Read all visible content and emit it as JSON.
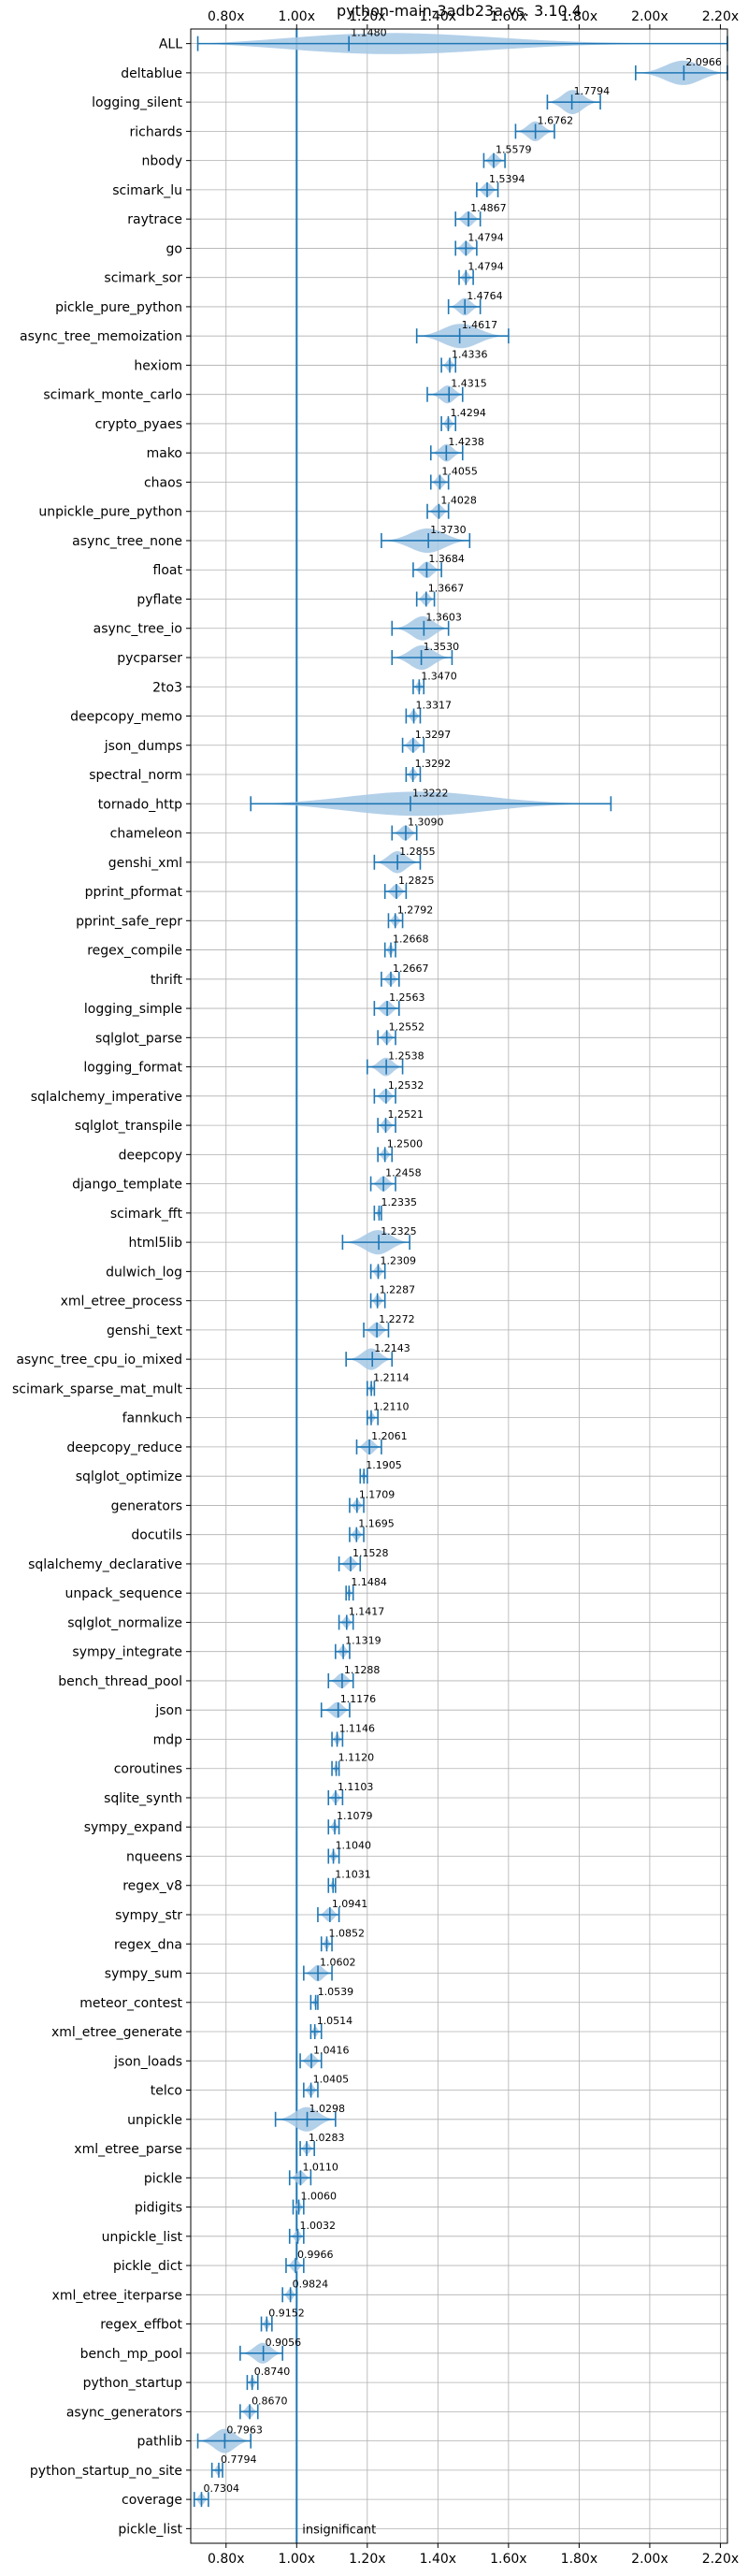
{
  "chart_data": {
    "type": "violin",
    "title": "python-main-3adb23a vs. 3.10.4",
    "xlim": [
      0.7,
      2.22
    ],
    "xticks": [
      0.8,
      1.0,
      1.2,
      1.4,
      1.6,
      1.8,
      2.0,
      2.2
    ],
    "xtick_labels": [
      "0.80x",
      "1.00x",
      "1.20x",
      "1.40x",
      "1.60x",
      "1.80x",
      "2.00x",
      "2.20x"
    ],
    "reference_x": 1.0,
    "grid": true,
    "annotation": "insignificant",
    "colors": {
      "accent": "#1f77b4",
      "violin": "#a6c8e5",
      "grid": "#b0b0b0"
    },
    "benchmarks": [
      {
        "name": "ALL",
        "value": 1.148,
        "label": "1.1480",
        "min": 0.72,
        "max": 2.22
      },
      {
        "name": "deltablue",
        "value": 2.0966,
        "label": "2.0966",
        "min": 1.96,
        "max": 2.22
      },
      {
        "name": "logging_silent",
        "value": 1.7794,
        "label": "1.7794",
        "min": 1.71,
        "max": 1.86
      },
      {
        "name": "richards",
        "value": 1.6762,
        "label": "1.6762",
        "min": 1.62,
        "max": 1.73
      },
      {
        "name": "nbody",
        "value": 1.5579,
        "label": "1.5579",
        "min": 1.53,
        "max": 1.59
      },
      {
        "name": "scimark_lu",
        "value": 1.5394,
        "label": "1.5394",
        "min": 1.51,
        "max": 1.57
      },
      {
        "name": "raytrace",
        "value": 1.4867,
        "label": "1.4867",
        "min": 1.45,
        "max": 1.52
      },
      {
        "name": "go",
        "value": 1.4794,
        "label": "1.4794",
        "min": 1.45,
        "max": 1.51
      },
      {
        "name": "scimark_sor",
        "value": 1.4794,
        "label": "1.4794",
        "min": 1.46,
        "max": 1.5
      },
      {
        "name": "pickle_pure_python",
        "value": 1.4764,
        "label": "1.4764",
        "min": 1.43,
        "max": 1.52
      },
      {
        "name": "async_tree_memoization",
        "value": 1.4617,
        "label": "1.4617",
        "min": 1.34,
        "max": 1.6
      },
      {
        "name": "hexiom",
        "value": 1.4336,
        "label": "1.4336",
        "min": 1.41,
        "max": 1.45
      },
      {
        "name": "scimark_monte_carlo",
        "value": 1.4315,
        "label": "1.4315",
        "min": 1.37,
        "max": 1.47
      },
      {
        "name": "crypto_pyaes",
        "value": 1.4294,
        "label": "1.4294",
        "min": 1.41,
        "max": 1.45
      },
      {
        "name": "mako",
        "value": 1.4238,
        "label": "1.4238",
        "min": 1.38,
        "max": 1.47
      },
      {
        "name": "chaos",
        "value": 1.4055,
        "label": "1.4055",
        "min": 1.38,
        "max": 1.43
      },
      {
        "name": "unpickle_pure_python",
        "value": 1.4028,
        "label": "1.4028",
        "min": 1.37,
        "max": 1.43
      },
      {
        "name": "async_tree_none",
        "value": 1.373,
        "label": "1.3730",
        "min": 1.24,
        "max": 1.49
      },
      {
        "name": "float",
        "value": 1.3684,
        "label": "1.3684",
        "min": 1.33,
        "max": 1.41
      },
      {
        "name": "pyflate",
        "value": 1.3667,
        "label": "1.3667",
        "min": 1.34,
        "max": 1.39
      },
      {
        "name": "async_tree_io",
        "value": 1.3603,
        "label": "1.3603",
        "min": 1.27,
        "max": 1.43
      },
      {
        "name": "pycparser",
        "value": 1.353,
        "label": "1.3530",
        "min": 1.27,
        "max": 1.44
      },
      {
        "name": "2to3",
        "value": 1.347,
        "label": "1.3470",
        "min": 1.33,
        "max": 1.36
      },
      {
        "name": "deepcopy_memo",
        "value": 1.3317,
        "label": "1.3317",
        "min": 1.31,
        "max": 1.35
      },
      {
        "name": "json_dumps",
        "value": 1.3297,
        "label": "1.3297",
        "min": 1.3,
        "max": 1.36
      },
      {
        "name": "spectral_norm",
        "value": 1.3292,
        "label": "1.3292",
        "min": 1.31,
        "max": 1.35
      },
      {
        "name": "tornado_http",
        "value": 1.3222,
        "label": "1.3222",
        "min": 0.87,
        "max": 1.89
      },
      {
        "name": "chameleon",
        "value": 1.309,
        "label": "1.3090",
        "min": 1.27,
        "max": 1.34
      },
      {
        "name": "genshi_xml",
        "value": 1.2855,
        "label": "1.2855",
        "min": 1.22,
        "max": 1.35
      },
      {
        "name": "pprint_pformat",
        "value": 1.2825,
        "label": "1.2825",
        "min": 1.25,
        "max": 1.31
      },
      {
        "name": "pprint_safe_repr",
        "value": 1.2792,
        "label": "1.2792",
        "min": 1.26,
        "max": 1.3
      },
      {
        "name": "regex_compile",
        "value": 1.2668,
        "label": "1.2668",
        "min": 1.25,
        "max": 1.28
      },
      {
        "name": "thrift",
        "value": 1.2667,
        "label": "1.2667",
        "min": 1.24,
        "max": 1.29
      },
      {
        "name": "logging_simple",
        "value": 1.2563,
        "label": "1.2563",
        "min": 1.22,
        "max": 1.29
      },
      {
        "name": "sqlglot_parse",
        "value": 1.2552,
        "label": "1.2552",
        "min": 1.23,
        "max": 1.28
      },
      {
        "name": "logging_format",
        "value": 1.2538,
        "label": "1.2538",
        "min": 1.2,
        "max": 1.3
      },
      {
        "name": "sqlalchemy_imperative",
        "value": 1.2532,
        "label": "1.2532",
        "min": 1.22,
        "max": 1.28
      },
      {
        "name": "sqlglot_transpile",
        "value": 1.2521,
        "label": "1.2521",
        "min": 1.23,
        "max": 1.28
      },
      {
        "name": "deepcopy",
        "value": 1.25,
        "label": "1.2500",
        "min": 1.23,
        "max": 1.27
      },
      {
        "name": "django_template",
        "value": 1.2458,
        "label": "1.2458",
        "min": 1.21,
        "max": 1.28
      },
      {
        "name": "scimark_fft",
        "value": 1.2335,
        "label": "1.2335",
        "min": 1.22,
        "max": 1.24
      },
      {
        "name": "html5lib",
        "value": 1.2325,
        "label": "1.2325",
        "min": 1.13,
        "max": 1.32
      },
      {
        "name": "dulwich_log",
        "value": 1.2309,
        "label": "1.2309",
        "min": 1.21,
        "max": 1.25
      },
      {
        "name": "xml_etree_process",
        "value": 1.2287,
        "label": "1.2287",
        "min": 1.21,
        "max": 1.25
      },
      {
        "name": "genshi_text",
        "value": 1.2272,
        "label": "1.2272",
        "min": 1.19,
        "max": 1.26
      },
      {
        "name": "async_tree_cpu_io_mixed",
        "value": 1.2143,
        "label": "1.2143",
        "min": 1.14,
        "max": 1.27
      },
      {
        "name": "scimark_sparse_mat_mult",
        "value": 1.2114,
        "label": "1.2114",
        "min": 1.2,
        "max": 1.22
      },
      {
        "name": "fannkuch",
        "value": 1.211,
        "label": "1.2110",
        "min": 1.2,
        "max": 1.23
      },
      {
        "name": "deepcopy_reduce",
        "value": 1.2061,
        "label": "1.2061",
        "min": 1.17,
        "max": 1.24
      },
      {
        "name": "sqlglot_optimize",
        "value": 1.1905,
        "label": "1.1905",
        "min": 1.18,
        "max": 1.2
      },
      {
        "name": "generators",
        "value": 1.1709,
        "label": "1.1709",
        "min": 1.15,
        "max": 1.19
      },
      {
        "name": "docutils",
        "value": 1.1695,
        "label": "1.1695",
        "min": 1.15,
        "max": 1.19
      },
      {
        "name": "sqlalchemy_declarative",
        "value": 1.1528,
        "label": "1.1528",
        "min": 1.12,
        "max": 1.18
      },
      {
        "name": "unpack_sequence",
        "value": 1.1484,
        "label": "1.1484",
        "min": 1.14,
        "max": 1.16
      },
      {
        "name": "sqlglot_normalize",
        "value": 1.1417,
        "label": "1.1417",
        "min": 1.12,
        "max": 1.16
      },
      {
        "name": "sympy_integrate",
        "value": 1.1319,
        "label": "1.1319",
        "min": 1.11,
        "max": 1.15
      },
      {
        "name": "bench_thread_pool",
        "value": 1.1288,
        "label": "1.1288",
        "min": 1.09,
        "max": 1.16
      },
      {
        "name": "json",
        "value": 1.1176,
        "label": "1.1176",
        "min": 1.07,
        "max": 1.15
      },
      {
        "name": "mdp",
        "value": 1.1146,
        "label": "1.1146",
        "min": 1.1,
        "max": 1.13
      },
      {
        "name": "coroutines",
        "value": 1.112,
        "label": "1.1120",
        "min": 1.1,
        "max": 1.12
      },
      {
        "name": "sqlite_synth",
        "value": 1.1103,
        "label": "1.1103",
        "min": 1.09,
        "max": 1.13
      },
      {
        "name": "sympy_expand",
        "value": 1.1079,
        "label": "1.1079",
        "min": 1.09,
        "max": 1.12
      },
      {
        "name": "nqueens",
        "value": 1.104,
        "label": "1.1040",
        "min": 1.09,
        "max": 1.12
      },
      {
        "name": "regex_v8",
        "value": 1.1031,
        "label": "1.1031",
        "min": 1.09,
        "max": 1.11
      },
      {
        "name": "sympy_str",
        "value": 1.0941,
        "label": "1.0941",
        "min": 1.06,
        "max": 1.12
      },
      {
        "name": "regex_dna",
        "value": 1.0852,
        "label": "1.0852",
        "min": 1.07,
        "max": 1.1
      },
      {
        "name": "sympy_sum",
        "value": 1.0602,
        "label": "1.0602",
        "min": 1.02,
        "max": 1.1
      },
      {
        "name": "meteor_contest",
        "value": 1.0539,
        "label": "1.0539",
        "min": 1.04,
        "max": 1.06
      },
      {
        "name": "xml_etree_generate",
        "value": 1.0514,
        "label": "1.0514",
        "min": 1.04,
        "max": 1.07
      },
      {
        "name": "json_loads",
        "value": 1.0416,
        "label": "1.0416",
        "min": 1.01,
        "max": 1.07
      },
      {
        "name": "telco",
        "value": 1.0405,
        "label": "1.0405",
        "min": 1.02,
        "max": 1.06
      },
      {
        "name": "unpickle",
        "value": 1.0298,
        "label": "1.0298",
        "min": 0.94,
        "max": 1.11
      },
      {
        "name": "xml_etree_parse",
        "value": 1.0283,
        "label": "1.0283",
        "min": 1.01,
        "max": 1.05
      },
      {
        "name": "pickle",
        "value": 1.011,
        "label": "1.0110",
        "min": 0.98,
        "max": 1.04
      },
      {
        "name": "pidigits",
        "value": 1.006,
        "label": "1.0060",
        "min": 0.99,
        "max": 1.02
      },
      {
        "name": "unpickle_list",
        "value": 1.0032,
        "label": "1.0032",
        "min": 0.98,
        "max": 1.02
      },
      {
        "name": "pickle_dict",
        "value": 0.9966,
        "label": "0.9966",
        "min": 0.97,
        "max": 1.02
      },
      {
        "name": "xml_etree_iterparse",
        "value": 0.9824,
        "label": "0.9824",
        "min": 0.96,
        "max": 1.0
      },
      {
        "name": "regex_effbot",
        "value": 0.9152,
        "label": "0.9152",
        "min": 0.9,
        "max": 0.93
      },
      {
        "name": "bench_mp_pool",
        "value": 0.9056,
        "label": "0.9056",
        "min": 0.84,
        "max": 0.96
      },
      {
        "name": "python_startup",
        "value": 0.874,
        "label": "0.8740",
        "min": 0.86,
        "max": 0.89
      },
      {
        "name": "async_generators",
        "value": 0.867,
        "label": "0.8670",
        "min": 0.84,
        "max": 0.89
      },
      {
        "name": "pathlib",
        "value": 0.7963,
        "label": "0.7963",
        "min": 0.72,
        "max": 0.87
      },
      {
        "name": "python_startup_no_site",
        "value": 0.7794,
        "label": "0.7794",
        "min": 0.76,
        "max": 0.79
      },
      {
        "name": "coverage",
        "value": 0.7304,
        "label": "0.7304",
        "min": 0.71,
        "max": 0.75
      },
      {
        "name": "pickle_list",
        "value": null,
        "label": "insignificant",
        "min": null,
        "max": null
      }
    ]
  }
}
